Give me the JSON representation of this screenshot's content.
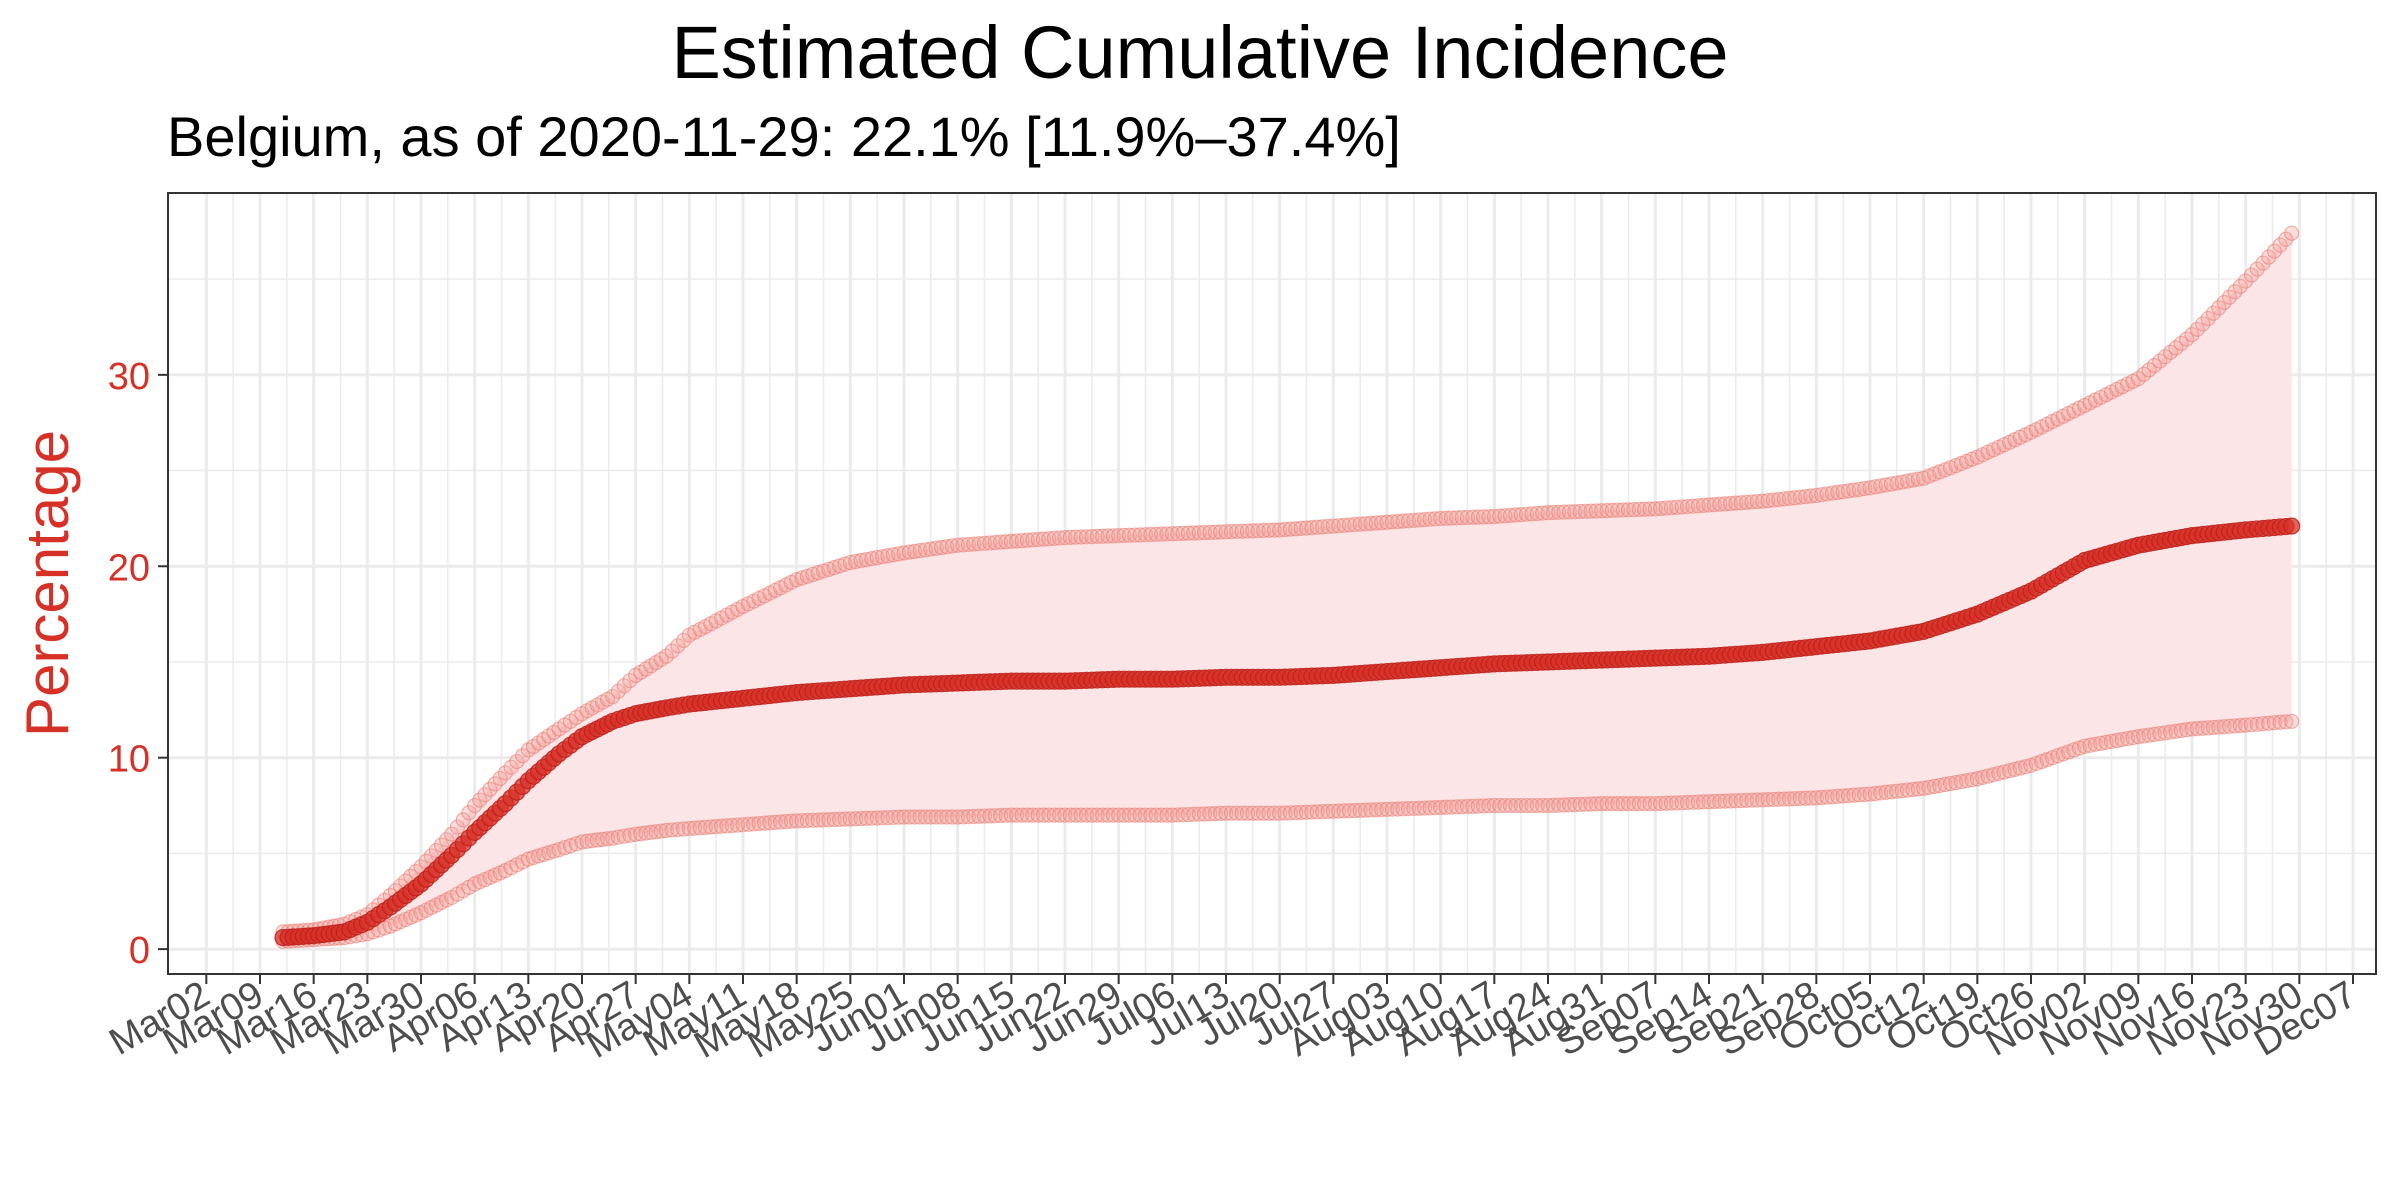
{
  "title": "Estimated Cumulative Incidence",
  "subtitle": "Belgium, as of 2020-11-29:  22.1% [11.9%–37.4%]",
  "colors": {
    "series": "#d73027",
    "band_fill": "#fbe5e6",
    "band_edge": "#f4a09a",
    "grid": "#ebebeb",
    "axis_text": "#4d4d4d",
    "ylabel": "#d73027"
  },
  "chart_data": {
    "type": "line",
    "title": "Estimated Cumulative Incidence",
    "subtitle": "Belgium, as of 2020-11-29:  22.1% [11.9%–37.4%]",
    "xlabel": "",
    "ylabel": "Percentage",
    "xlim": [
      "2020-02-26",
      "2020-12-10"
    ],
    "ylim": [
      -1.3,
      39.5
    ],
    "yticks": [
      0,
      10,
      20,
      30
    ],
    "xticks": [
      "2020-03-02",
      "2020-03-09",
      "2020-03-16",
      "2020-03-23",
      "2020-03-30",
      "2020-04-06",
      "2020-04-13",
      "2020-04-20",
      "2020-04-27",
      "2020-05-04",
      "2020-05-11",
      "2020-05-18",
      "2020-05-25",
      "2020-06-01",
      "2020-06-08",
      "2020-06-15",
      "2020-06-22",
      "2020-06-29",
      "2020-07-06",
      "2020-07-13",
      "2020-07-20",
      "2020-07-27",
      "2020-08-03",
      "2020-08-10",
      "2020-08-17",
      "2020-08-24",
      "2020-08-31",
      "2020-09-07",
      "2020-09-14",
      "2020-09-21",
      "2020-09-28",
      "2020-10-05",
      "2020-10-12",
      "2020-10-19",
      "2020-10-26",
      "2020-11-02",
      "2020-11-09",
      "2020-11-16",
      "2020-11-23",
      "2020-11-30",
      "2020-12-07"
    ],
    "xtick_labels": [
      "Mar02",
      "Mar09",
      "Mar16",
      "Mar23",
      "Mar30",
      "Apr06",
      "Apr13",
      "Apr20",
      "Apr27",
      "May04",
      "May11",
      "May18",
      "May25",
      "Jun01",
      "Jun08",
      "Jun15",
      "Jun22",
      "Jun29",
      "Jul06",
      "Jul13",
      "Jul20",
      "Jul27",
      "Aug03",
      "Aug10",
      "Aug17",
      "Aug24",
      "Aug31",
      "Sep07",
      "Sep14",
      "Sep21",
      "Sep28",
      "Oct05",
      "Oct12",
      "Oct19",
      "Oct26",
      "Nov02",
      "Nov09",
      "Nov16",
      "Nov23",
      "Nov30",
      "Dec07"
    ],
    "grid": true,
    "legend": "none",
    "x": [
      "2020-03-12",
      "2020-03-16",
      "2020-03-20",
      "2020-03-23",
      "2020-03-26",
      "2020-03-30",
      "2020-04-03",
      "2020-04-06",
      "2020-04-10",
      "2020-04-13",
      "2020-04-17",
      "2020-04-20",
      "2020-04-24",
      "2020-04-27",
      "2020-05-01",
      "2020-05-04",
      "2020-05-11",
      "2020-05-18",
      "2020-05-25",
      "2020-06-01",
      "2020-06-08",
      "2020-06-15",
      "2020-06-22",
      "2020-06-29",
      "2020-07-06",
      "2020-07-13",
      "2020-07-20",
      "2020-07-27",
      "2020-08-03",
      "2020-08-10",
      "2020-08-17",
      "2020-08-24",
      "2020-08-31",
      "2020-09-07",
      "2020-09-14",
      "2020-09-21",
      "2020-09-28",
      "2020-10-05",
      "2020-10-12",
      "2020-10-19",
      "2020-10-26",
      "2020-11-02",
      "2020-11-09",
      "2020-11-16",
      "2020-11-23",
      "2020-11-29"
    ],
    "series": [
      {
        "values": [
          0.6,
          0.7,
          0.9,
          1.4,
          2.2,
          3.4,
          4.9,
          6.1,
          7.6,
          8.8,
          10.2,
          11.1,
          11.9,
          12.3,
          12.6,
          12.8,
          13.1,
          13.4,
          13.6,
          13.8,
          13.9,
          14.0,
          14.0,
          14.1,
          14.1,
          14.2,
          14.2,
          14.3,
          14.5,
          14.7,
          14.9,
          15.0,
          15.1,
          15.2,
          15.3,
          15.5,
          15.8,
          16.1,
          16.6,
          17.5,
          18.7,
          20.3,
          21.1,
          21.6,
          21.9,
          22.1
        ]
      },
      {
        "values": [
          0.4,
          0.5,
          0.6,
          0.8,
          1.2,
          1.9,
          2.7,
          3.4,
          4.1,
          4.7,
          5.2,
          5.6,
          5.8,
          6.0,
          6.2,
          6.3,
          6.5,
          6.7,
          6.8,
          6.9,
          6.9,
          7.0,
          7.0,
          7.0,
          7.0,
          7.1,
          7.1,
          7.2,
          7.3,
          7.4,
          7.5,
          7.5,
          7.6,
          7.6,
          7.7,
          7.8,
          7.9,
          8.1,
          8.4,
          8.9,
          9.6,
          10.6,
          11.1,
          11.5,
          11.7,
          11.9
        ]
      },
      {
        "values": [
          0.9,
          1.0,
          1.3,
          1.8,
          2.8,
          4.3,
          6.0,
          7.5,
          9.2,
          10.4,
          11.5,
          12.3,
          13.2,
          14.3,
          15.3,
          16.4,
          17.9,
          19.3,
          20.2,
          20.7,
          21.1,
          21.3,
          21.5,
          21.6,
          21.7,
          21.8,
          21.9,
          22.1,
          22.3,
          22.5,
          22.6,
          22.8,
          22.9,
          23.0,
          23.2,
          23.4,
          23.7,
          24.1,
          24.6,
          25.7,
          27.0,
          28.4,
          29.8,
          32.1,
          34.9,
          37.4
        ]
      }
    ]
  }
}
